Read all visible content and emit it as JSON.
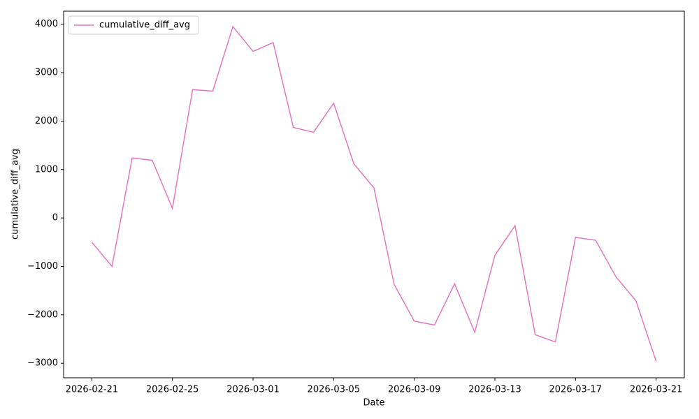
{
  "chart_data": {
    "type": "line",
    "xlabel": "Date",
    "ylabel": "cumulative_diff_avg",
    "x": [
      "2026-02-21",
      "2026-02-22",
      "2026-02-23",
      "2026-02-24",
      "2026-02-25",
      "2026-02-26",
      "2026-02-27",
      "2026-02-28",
      "2026-03-01",
      "2026-03-02",
      "2026-03-03",
      "2026-03-04",
      "2026-03-05",
      "2026-03-06",
      "2026-03-07",
      "2026-03-08",
      "2026-03-09",
      "2026-03-10",
      "2026-03-11",
      "2026-03-12",
      "2026-03-13",
      "2026-03-14",
      "2026-03-15",
      "2026-03-16",
      "2026-03-17",
      "2026-03-18",
      "2026-03-19",
      "2026-03-20",
      "2026-03-21"
    ],
    "series": [
      {
        "name": "cumulative_diff_avg",
        "color": "#e377c2",
        "values": [
          -500,
          -1000,
          1240,
          1190,
          200,
          2650,
          2620,
          3950,
          3440,
          3620,
          1870,
          1770,
          2370,
          1120,
          620,
          -1370,
          -2130,
          -2210,
          -1360,
          -2360,
          -770,
          -160,
          -2410,
          -2560,
          -400,
          -460,
          -1210,
          -1710,
          -2960
        ]
      }
    ],
    "xlim": [
      "2026-02-19T14:24",
      "2026-03-22T09:36"
    ],
    "xticks": [
      "2026-02-21",
      "2026-02-25",
      "2026-03-01",
      "2026-03-05",
      "2026-03-09",
      "2026-03-13",
      "2026-03-17",
      "2026-03-21"
    ],
    "ylim": [
      -3300,
      4270
    ],
    "yticks": [
      {
        "value": -3000,
        "label": "−3000"
      },
      {
        "value": -2000,
        "label": "−2000"
      },
      {
        "value": -1000,
        "label": "−1000"
      },
      0,
      1000,
      2000,
      3000,
      4000
    ],
    "grid": false,
    "legend": "upper left"
  }
}
